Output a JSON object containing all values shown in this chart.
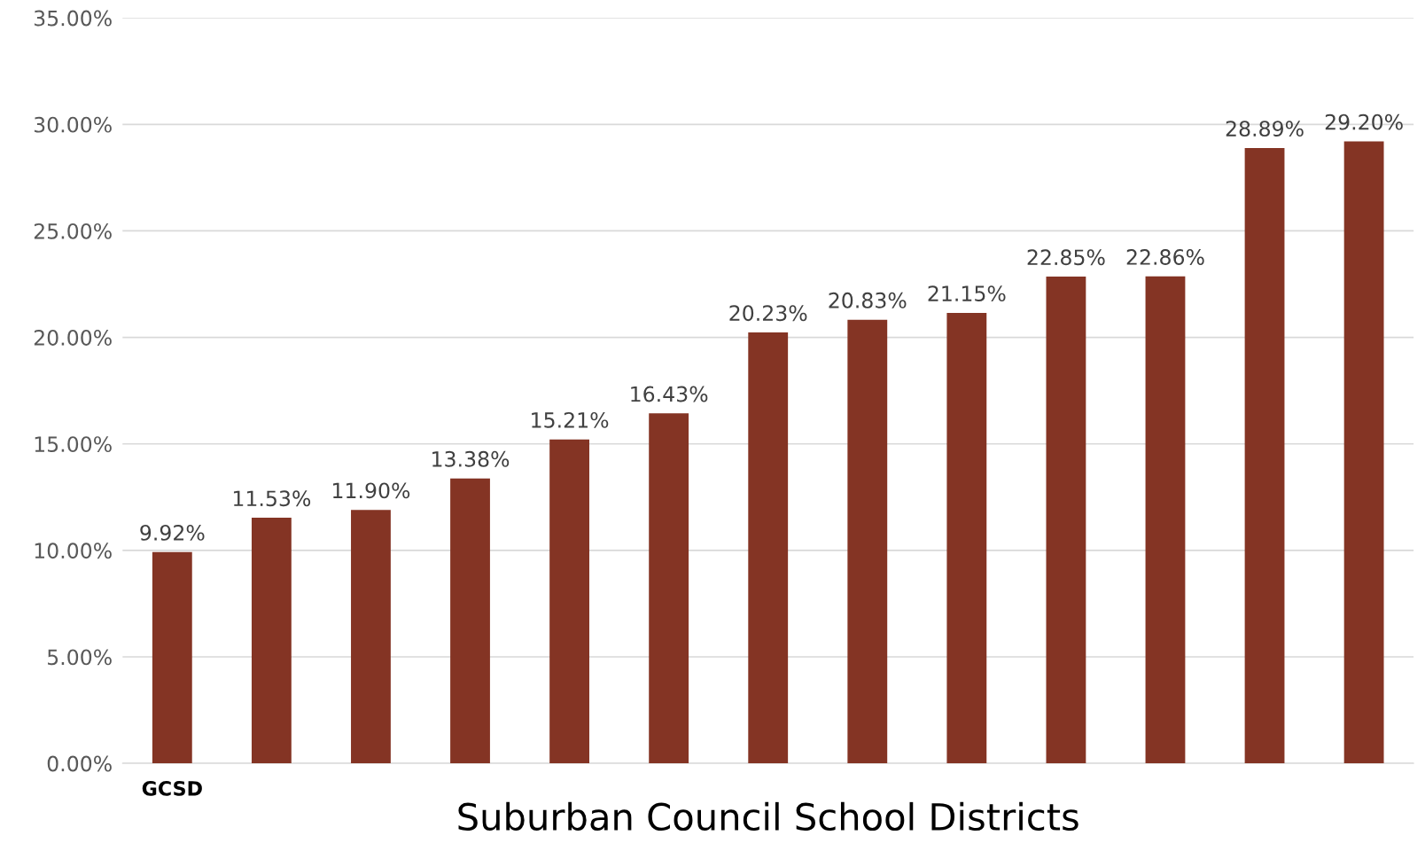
{
  "chart_data": {
    "type": "bar",
    "xlabel": "Suburban Council School Districts",
    "categories": [
      "GCSD",
      null,
      null,
      null,
      null,
      null,
      null,
      null,
      null,
      null,
      null,
      null,
      null
    ],
    "values": [
      9.92,
      11.53,
      11.9,
      13.38,
      15.21,
      16.43,
      20.23,
      20.83,
      21.15,
      22.85,
      22.86,
      28.89,
      29.2
    ],
    "value_labels": [
      "9.92%",
      "11.53%",
      "11.90%",
      "13.38%",
      "15.21%",
      "16.43%",
      "20.23%",
      "20.83%",
      "21.15%",
      "22.85%",
      "22.86%",
      "28.89%",
      "29.20%"
    ],
    "color": "#843424",
    "ylim": [
      0,
      35
    ],
    "yticks": [
      {
        "value": 0,
        "label": "0.00%"
      },
      {
        "value": 5,
        "label": "5.00%"
      },
      {
        "value": 10,
        "label": "10.00%"
      },
      {
        "value": 15,
        "label": "15.00%"
      },
      {
        "value": 20,
        "label": "20.00%"
      },
      {
        "value": 25,
        "label": "25.00%"
      },
      {
        "value": 30,
        "label": "30.00%"
      },
      {
        "value": 35,
        "label": "35.00%"
      }
    ],
    "grid": "y"
  }
}
